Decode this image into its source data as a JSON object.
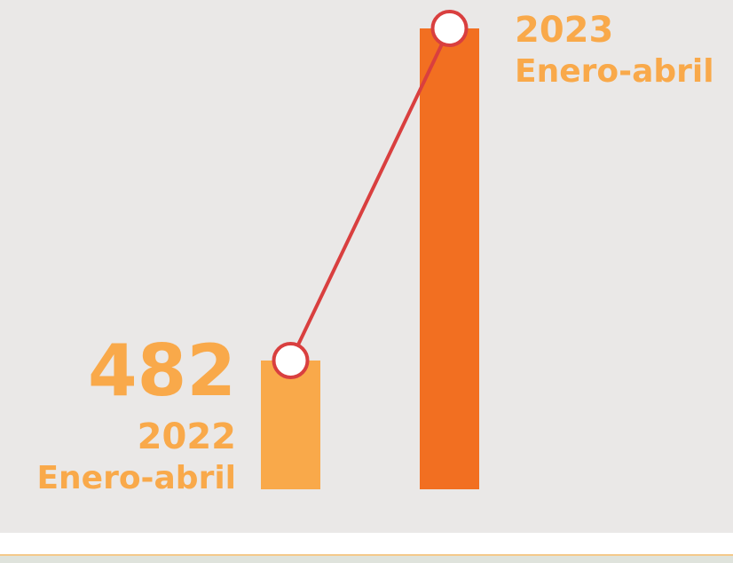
{
  "chart_data": {
    "type": "bar-line",
    "categories": [
      "2022",
      "2023"
    ],
    "periods": [
      "Enero-abril",
      "Enero-abril"
    ],
    "values": [
      482,
      1725
    ],
    "colors": [
      "#f9a94a",
      "#f26f21"
    ],
    "line_color": "#d93f3f"
  }
}
